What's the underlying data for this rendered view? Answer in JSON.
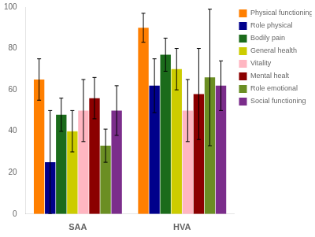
{
  "chart_data": {
    "type": "bar",
    "categories": [
      "SAA",
      "HVA"
    ],
    "series": [
      {
        "name": "Physical functioning",
        "color": "#FF7F00",
        "values": [
          65,
          90
        ],
        "errors": [
          10,
          7
        ]
      },
      {
        "name": "Role physical",
        "color": "#00008B",
        "values": [
          25,
          62
        ],
        "errors": [
          25,
          13
        ]
      },
      {
        "name": "Bodily pain",
        "color": "#1B6B1B",
        "values": [
          48,
          77
        ],
        "errors": [
          8,
          8
        ]
      },
      {
        "name": "General health",
        "color": "#CCCC00",
        "values": [
          40,
          70
        ],
        "errors": [
          10,
          10
        ]
      },
      {
        "name": "Vitality",
        "color": "#FFB6C1",
        "values": [
          50,
          50
        ],
        "errors": [
          15,
          15
        ]
      },
      {
        "name": "Mental healt",
        "color": "#8B0000",
        "values": [
          56,
          58
        ],
        "errors": [
          10,
          22
        ]
      },
      {
        "name": "Role emotional",
        "color": "#6B8E23",
        "values": [
          33,
          66
        ],
        "errors": [
          8,
          33
        ]
      },
      {
        "name": "Social functioning",
        "color": "#7B2D8B",
        "values": [
          50,
          62
        ],
        "errors": [
          12,
          12
        ]
      }
    ],
    "ylim": [
      0,
      100
    ],
    "yticks": [
      0,
      20,
      40,
      60,
      80,
      100
    ],
    "grid": false,
    "legend": "upper right"
  }
}
